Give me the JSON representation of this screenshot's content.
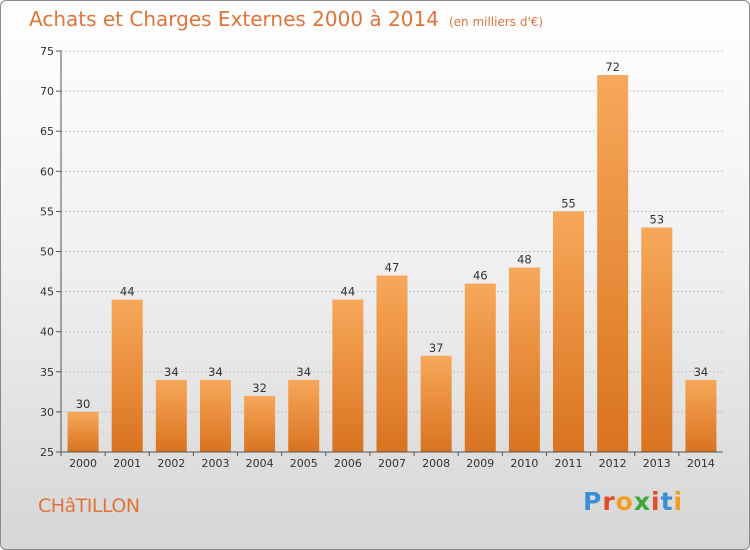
{
  "header": {
    "title": "Achats et Charges Externes 2000 à 2014",
    "subtitle": "(en milliers d'€)"
  },
  "footer": {
    "city": "CHâTILLON",
    "logo_letters": [
      "P",
      "r",
      "o",
      "x",
      "i",
      "t",
      "i"
    ]
  },
  "colors": {
    "title": "#e0743a",
    "bar_top": "#f7a85a",
    "bar_bottom": "#d9731f",
    "logo": [
      "#3b8fd6",
      "#e34b2a",
      "#f0a020",
      "#3aaa3a",
      "#e34b2a",
      "#3b8fd6",
      "#f0a020"
    ]
  },
  "chart_data": {
    "type": "bar",
    "title": "Achats et Charges Externes 2000 à 2014",
    "subtitle": "(en milliers d'€)",
    "categories": [
      "2000",
      "2001",
      "2002",
      "2003",
      "2004",
      "2005",
      "2006",
      "2007",
      "2008",
      "2009",
      "2010",
      "2011",
      "2012",
      "2013",
      "2014"
    ],
    "values": [
      30,
      44,
      34,
      34,
      32,
      34,
      44,
      47,
      37,
      46,
      48,
      55,
      72,
      53,
      34
    ],
    "ylim": [
      25,
      75
    ],
    "yticks": [
      25,
      30,
      35,
      40,
      45,
      50,
      55,
      60,
      65,
      70,
      75
    ],
    "grid": true,
    "xlabel": "",
    "ylabel": ""
  }
}
